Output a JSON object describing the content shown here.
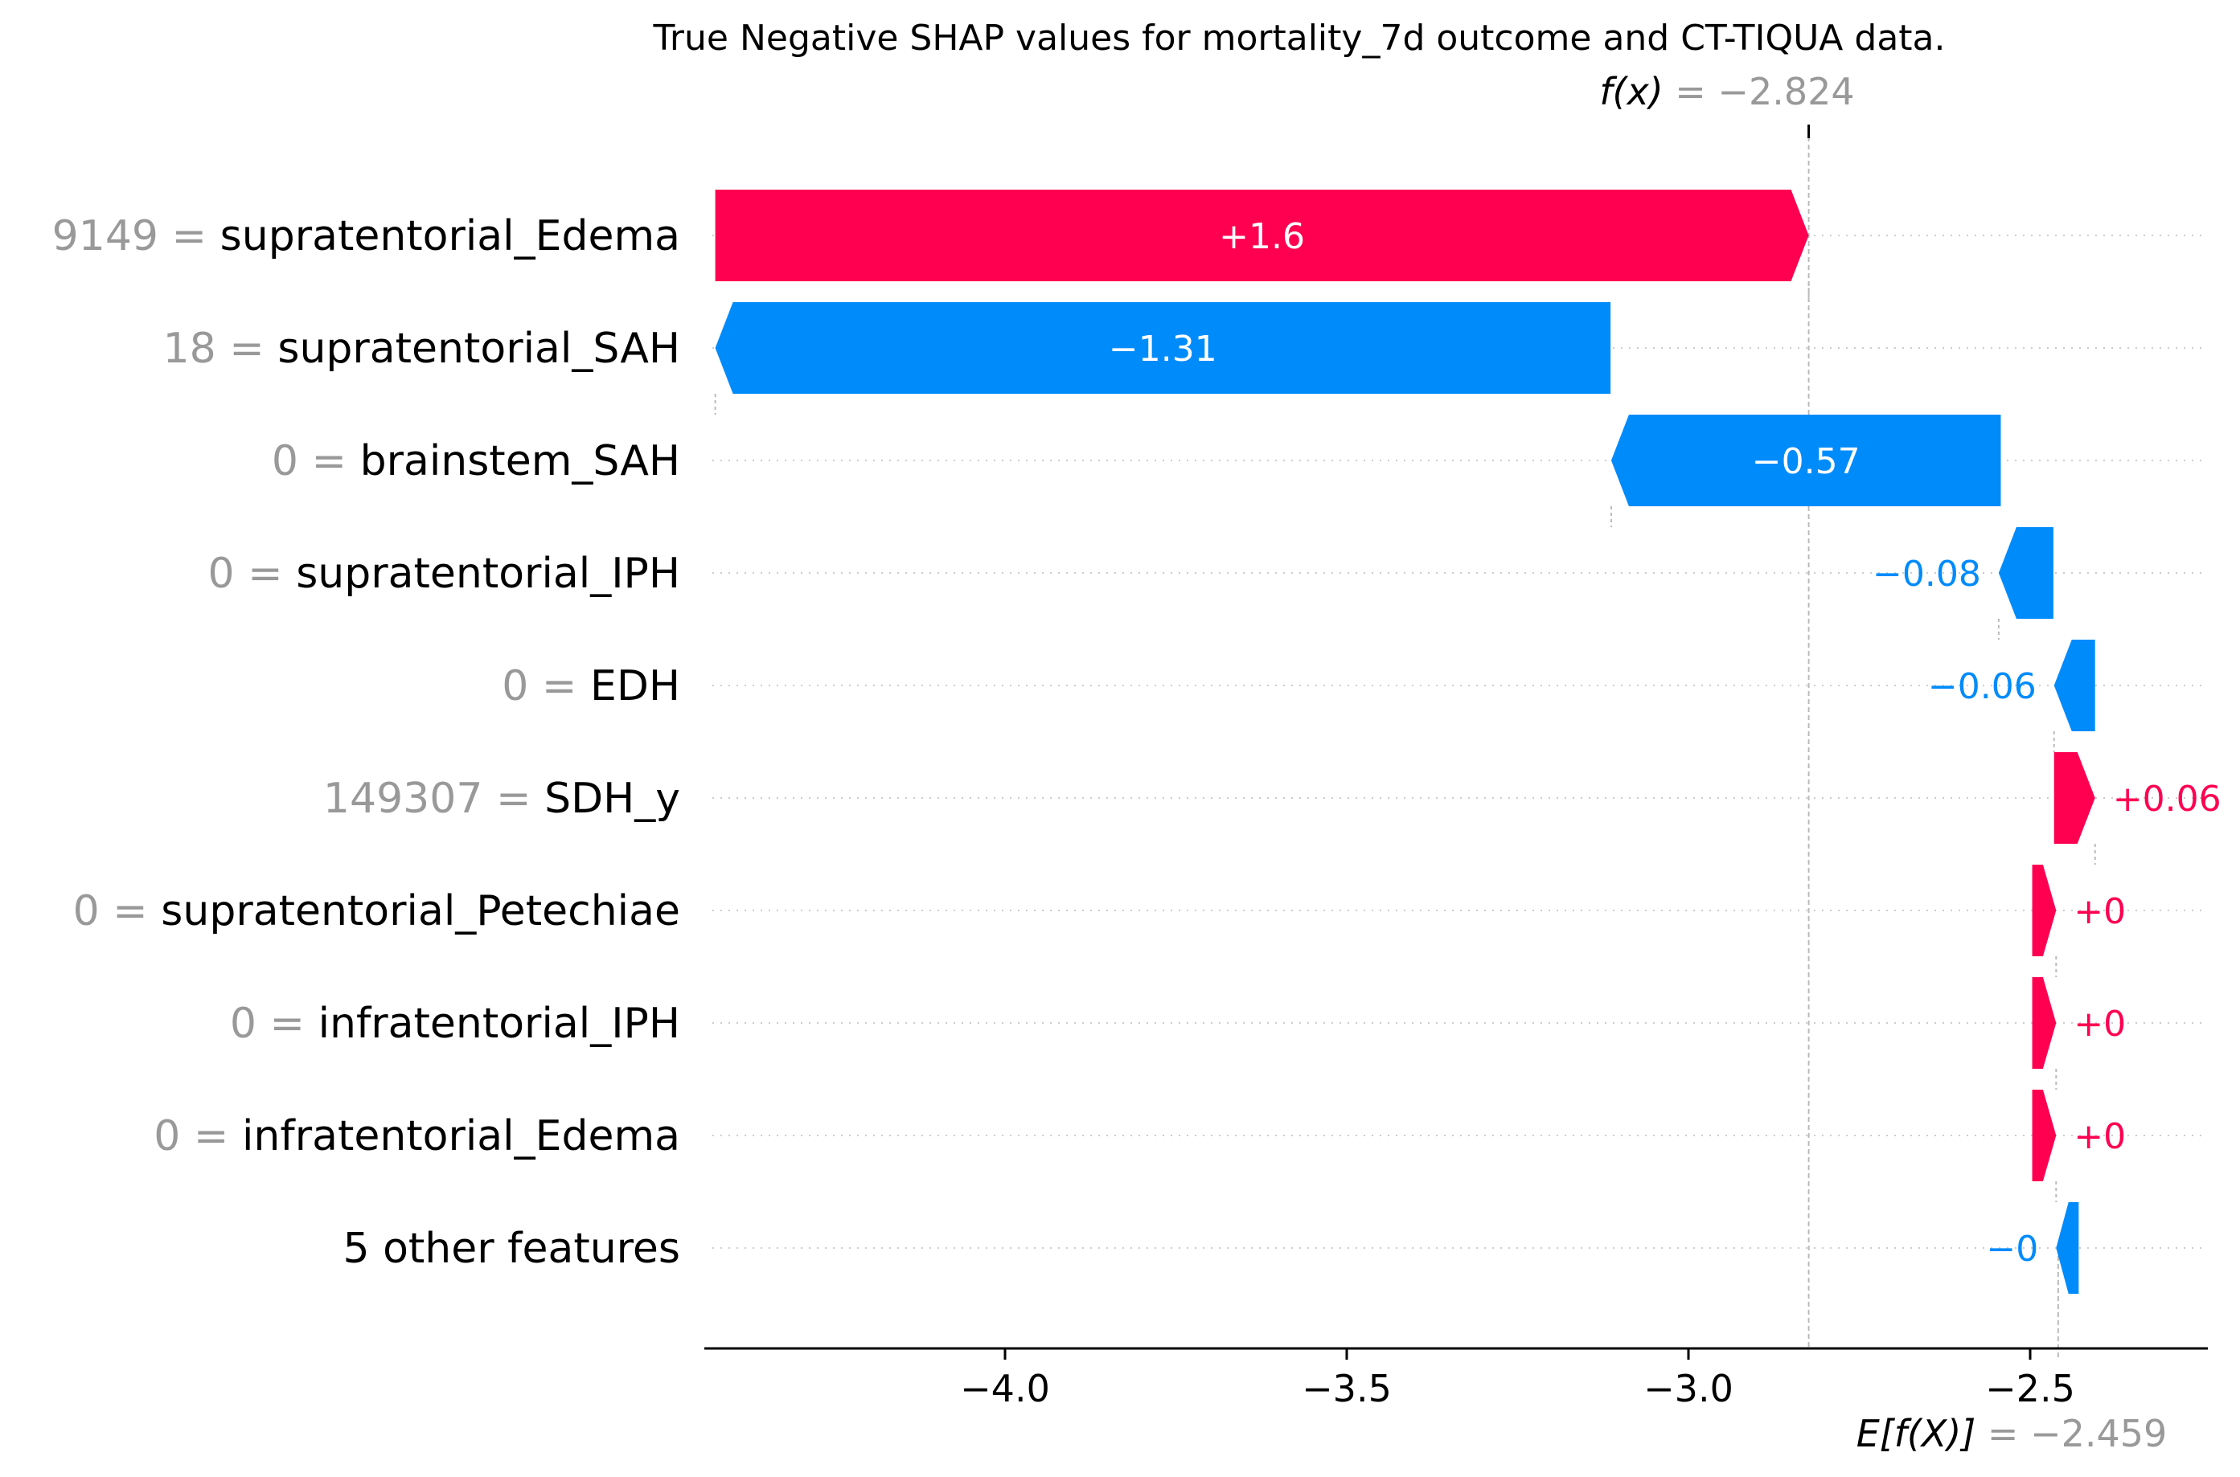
{
  "chart_data": {
    "type": "waterfall",
    "title": "True Negative SHAP values for mortality_7d outcome and CT-TIQUA data.",
    "base_value": -2.459,
    "base_label": "E[f(X)]",
    "base_value_text": "= −2.459",
    "output_value": -2.824,
    "output_label": "f(x)",
    "output_value_text": "= −2.824",
    "xlim": [
      -4.44,
      -2.24
    ],
    "xticks": [
      {
        "value": -4.0,
        "label": "−4.0"
      },
      {
        "value": -3.5,
        "label": "−3.5"
      },
      {
        "value": -3.0,
        "label": "−3.0"
      },
      {
        "value": -2.5,
        "label": "−2.5"
      }
    ],
    "features": [
      {
        "value_text": "9149",
        "feature": "supratentorial_Edema",
        "shap": 1.6,
        "start": -4.424,
        "label": "+1.6"
      },
      {
        "value_text": "18",
        "feature": "supratentorial_SAH",
        "shap": -1.31,
        "start": -3.114,
        "label": "−1.31"
      },
      {
        "value_text": "0",
        "feature": "brainstem_SAH",
        "shap": -0.57,
        "start": -2.543,
        "label": "−0.57"
      },
      {
        "value_text": "0",
        "feature": "supratentorial_IPH",
        "shap": -0.08,
        "start": -2.466,
        "label": "−0.08"
      },
      {
        "value_text": "0",
        "feature": "EDH",
        "shap": -0.06,
        "start": -2.405,
        "label": "−0.06"
      },
      {
        "value_text": "149307",
        "feature": "SDH_y",
        "shap": 0.06,
        "start": -2.465,
        "label": "+0.06"
      },
      {
        "value_text": "0",
        "feature": "supratentorial_Petechiae",
        "shap": 0.0,
        "start": -2.497,
        "end": -2.462,
        "label": "+0"
      },
      {
        "value_text": "0",
        "feature": "infratentorial_IPH",
        "shap": 0.0,
        "start": -2.497,
        "end": -2.462,
        "label": "+0"
      },
      {
        "value_text": "0",
        "feature": "infratentorial_Edema",
        "shap": 0.0,
        "start": -2.497,
        "end": -2.462,
        "label": "+0"
      },
      {
        "value_text": "",
        "feature": "5 other features",
        "shap": 0.0,
        "start": -2.429,
        "end": -2.462,
        "label": "−0"
      }
    ],
    "colors": {
      "positive": "#ff0051",
      "negative": "#008bfb",
      "text": "#000000",
      "muted": "#999999",
      "grid": "#cccccc",
      "axis": "#000000"
    },
    "grid": true
  }
}
